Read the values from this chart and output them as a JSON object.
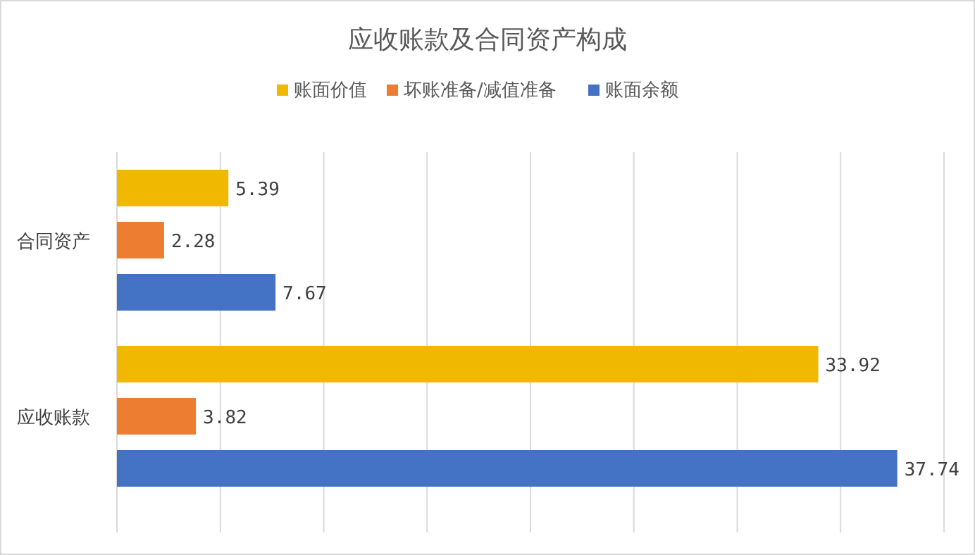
{
  "chart_data": {
    "type": "bar",
    "orientation": "horizontal",
    "title": "应收账款及合同资产构成",
    "categories": [
      "合同资产",
      "应收账款"
    ],
    "series": [
      {
        "name": "账面价值",
        "color": "#f0b800",
        "values": [
          5.39,
          33.92
        ]
      },
      {
        "name": "坏账准备/减值准备",
        "color": "#ed7d31",
        "values": [
          2.28,
          3.82
        ]
      },
      {
        "name": "账面余额",
        "color": "#4472c4",
        "values": [
          7.67,
          37.74
        ]
      }
    ],
    "xlim": [
      0,
      40
    ],
    "xticks": [
      {
        "value": 0,
        "label": null
      },
      {
        "value": 5,
        "label": null
      },
      {
        "value": 10,
        "label": null
      },
      {
        "value": 15,
        "label": null
      },
      {
        "value": 20,
        "label": null
      },
      {
        "value": 25,
        "label": null
      },
      {
        "value": 30,
        "label": null
      },
      {
        "value": 35,
        "label": null
      },
      {
        "value": 40,
        "label": null
      }
    ],
    "tick_labels": "y",
    "grid": "x",
    "legend": "top",
    "data_labels": true
  }
}
